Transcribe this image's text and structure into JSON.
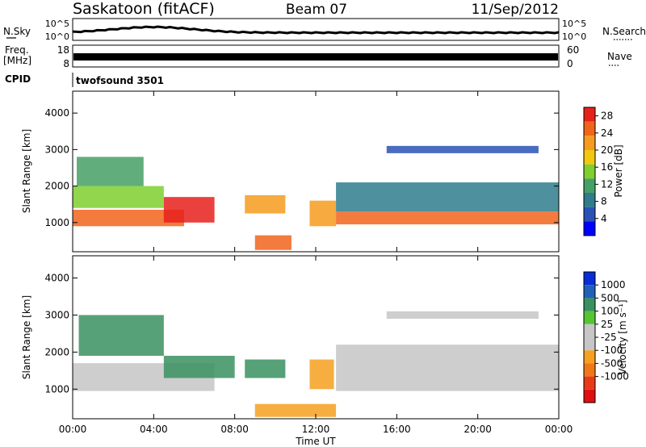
{
  "header": {
    "station": "Saskatoon (fitACF)",
    "beam": "Beam 07",
    "date": "11/Sep/2012"
  },
  "strips": {
    "nsky_label": "N.Sky",
    "nsky_ticks": [
      "10^5",
      "10^0"
    ],
    "nsearch_label": "N.Search",
    "nsearch_ticks": [
      "10^5",
      "10^0"
    ],
    "freq_label_top": "Freq.",
    "freq_label_unit": "[MHz]",
    "freq_ticks": [
      "18",
      "8"
    ],
    "nave_label": "Nave",
    "nave_ticks": [
      "60",
      "0"
    ],
    "cpid_label": "CPID",
    "cpid_value": "twofsound 3501"
  },
  "colors": {
    "power_scale": [
      "#0000ff",
      "#2a52b5",
      "#2f7d8c",
      "#45a065",
      "#7fcf2e",
      "#f2c80e",
      "#f59b1f",
      "#f0641b",
      "#e8201c"
    ],
    "velocity_scale": [
      "#0a2dd8",
      "#2160b8",
      "#3a9060",
      "#57c434",
      "#c6c6c6",
      "#c6c6c6",
      "#f5a020",
      "#f07818",
      "#e83a18",
      "#e00f0f"
    ]
  },
  "chart_data": [
    {
      "type": "heatmap",
      "name": "power",
      "xlabel": "Time UT",
      "ylabel": "Slant Range [km]",
      "x_ticks": [
        "00:00",
        "04:00",
        "08:00",
        "12:00",
        "16:00",
        "20:00",
        "00:00"
      ],
      "xlim": [
        0,
        24
      ],
      "ylim": [
        200,
        4600
      ],
      "y_ticks": [
        1000,
        2000,
        3000,
        4000
      ],
      "colorbar": {
        "label": "Power [dB]",
        "ticks": [
          4,
          8,
          12,
          16,
          20,
          24,
          28
        ],
        "range": [
          0,
          30
        ]
      },
      "regions": [
        {
          "t": [
            0.0,
            5.5
          ],
          "range_km": [
            900,
            1350
          ],
          "value": 26
        },
        {
          "t": [
            0.0,
            4.5
          ],
          "range_km": [
            1400,
            2000
          ],
          "value": 14
        },
        {
          "t": [
            0.2,
            3.5
          ],
          "range_km": [
            2000,
            2800
          ],
          "value": 12
        },
        {
          "t": [
            4.5,
            7.0
          ],
          "range_km": [
            1000,
            1700
          ],
          "value": 27
        },
        {
          "t": [
            8.5,
            10.5
          ],
          "range_km": [
            1250,
            1750
          ],
          "value": 20
        },
        {
          "t": [
            9.0,
            10.8
          ],
          "range_km": [
            250,
            650
          ],
          "value": 26
        },
        {
          "t": [
            11.7,
            13.0
          ],
          "range_km": [
            900,
            1600
          ],
          "value": 20
        },
        {
          "t": [
            13.0,
            24.0
          ],
          "range_km": [
            950,
            1300
          ],
          "value": 25
        },
        {
          "t": [
            13.0,
            24.0
          ],
          "range_km": [
            1300,
            2100
          ],
          "value": 9
        },
        {
          "t": [
            15.5,
            23.0
          ],
          "range_km": [
            2900,
            3100
          ],
          "value": 6
        }
      ]
    },
    {
      "type": "heatmap",
      "name": "velocity",
      "xlabel": "Time UT",
      "ylabel": "Slant Range [km]",
      "x_ticks": [
        "00:00",
        "04:00",
        "08:00",
        "12:00",
        "16:00",
        "20:00",
        "00:00"
      ],
      "xlim": [
        0,
        24
      ],
      "ylim": [
        200,
        4600
      ],
      "y_ticks": [
        1000,
        2000,
        3000,
        4000
      ],
      "colorbar": {
        "label": "Velocity [m s⁻¹]",
        "ticks": [
          "1000",
          "500",
          "100",
          "25",
          "-25",
          "-100",
          "-500",
          "-1000"
        ]
      },
      "regions": [
        {
          "t": [
            0.0,
            7.0
          ],
          "range_km": [
            950,
            1700
          ],
          "value": 0
        },
        {
          "t": [
            0.3,
            4.5
          ],
          "range_km": [
            1900,
            3000
          ],
          "value": 150
        },
        {
          "t": [
            4.5,
            8.0
          ],
          "range_km": [
            1300,
            1900
          ],
          "value": 200
        },
        {
          "t": [
            8.5,
            10.5
          ],
          "range_km": [
            1300,
            1800
          ],
          "value": 300
        },
        {
          "t": [
            9.0,
            13.0
          ],
          "range_km": [
            250,
            600
          ],
          "value": -150
        },
        {
          "t": [
            11.7,
            12.9
          ],
          "range_km": [
            1000,
            1800
          ],
          "value": -300
        },
        {
          "t": [
            13.0,
            24.0
          ],
          "range_km": [
            950,
            2200
          ],
          "value": 0
        },
        {
          "t": [
            15.5,
            23.0
          ],
          "range_km": [
            2900,
            3100
          ],
          "value": 0
        }
      ]
    }
  ]
}
